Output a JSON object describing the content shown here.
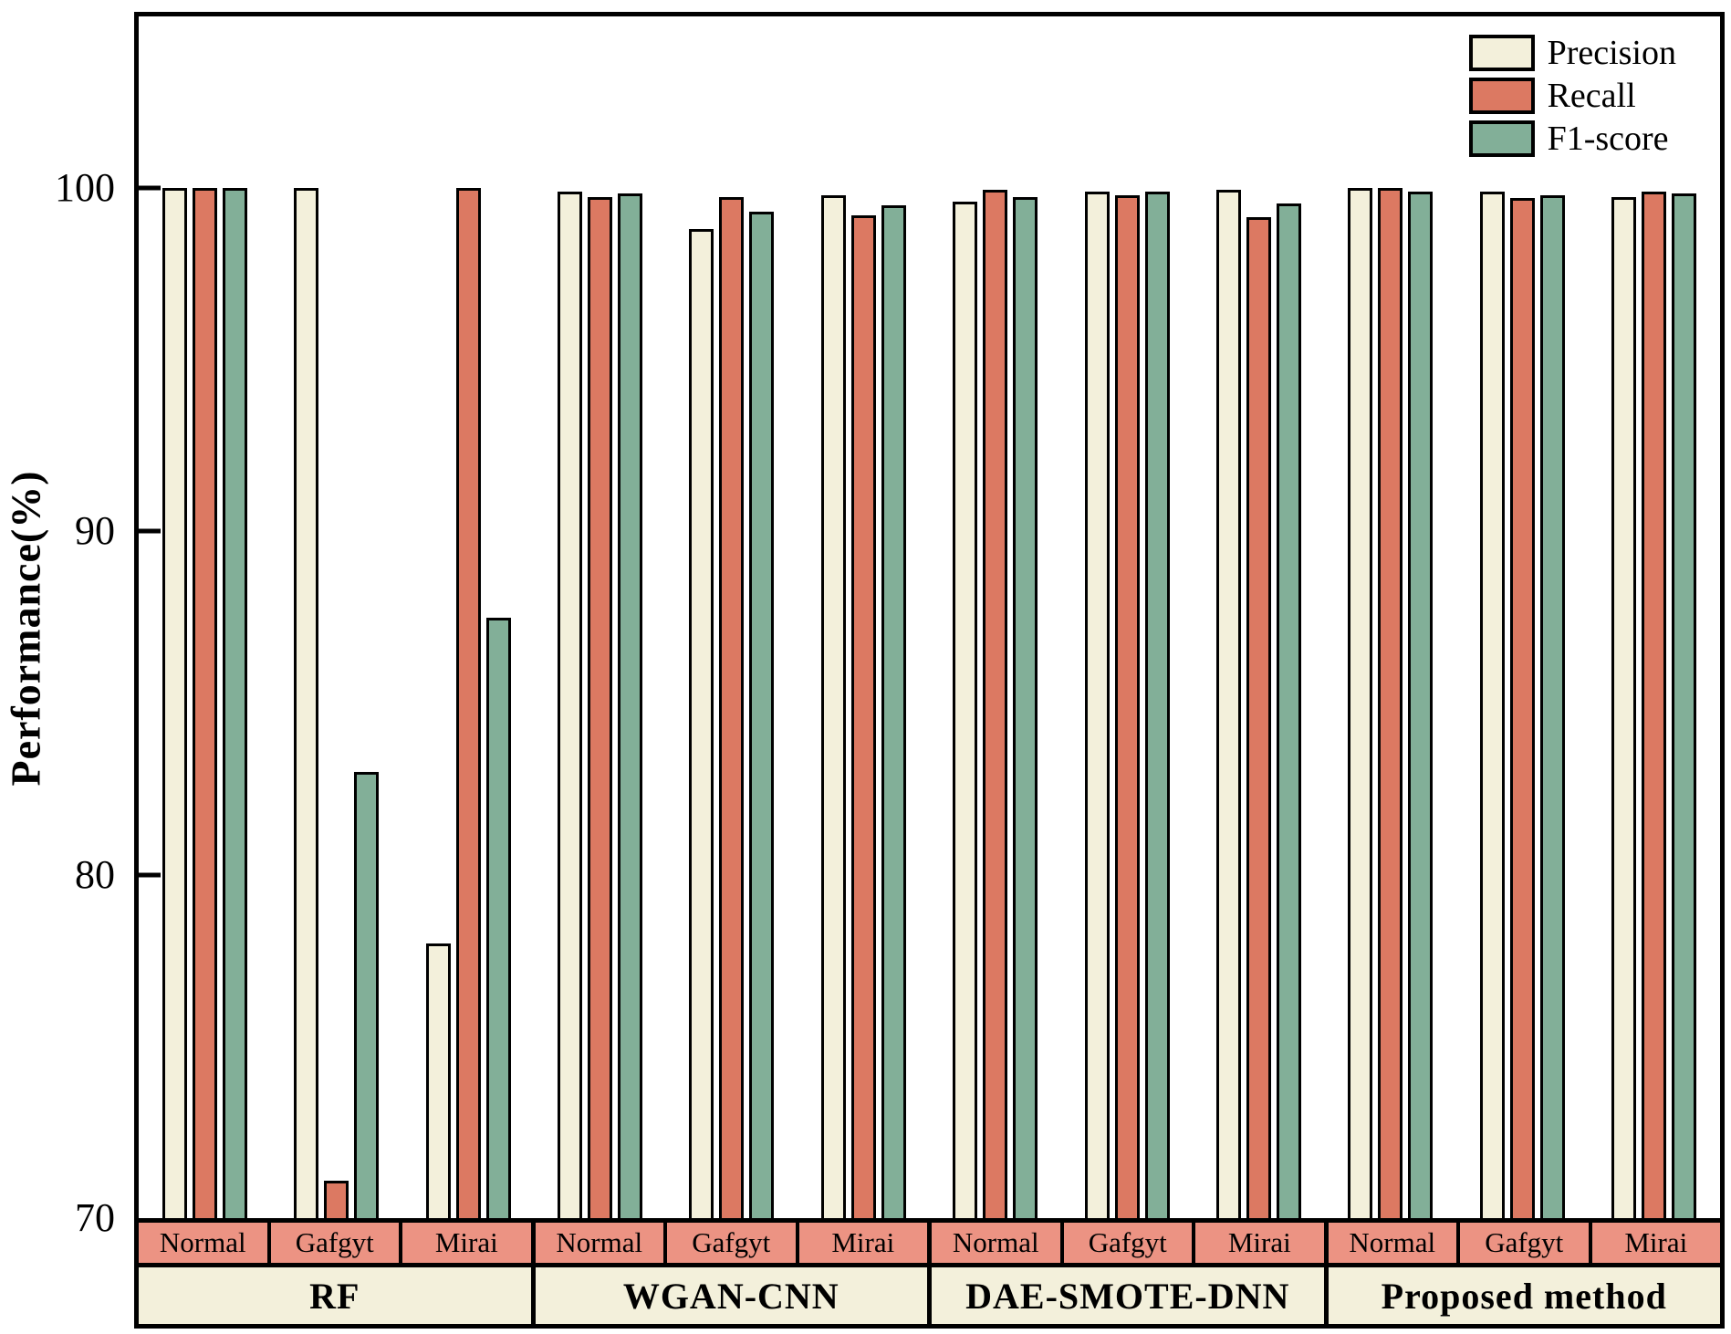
{
  "chart_data": {
    "type": "bar",
    "title": "",
    "xlabel": "",
    "ylabel": "Performance(%)",
    "ylim": [
      70,
      105
    ],
    "yticks": [
      70,
      80,
      90,
      100
    ],
    "grid": false,
    "legend_position": "top-right-inside",
    "series_names": [
      "Precision",
      "Recall",
      "F1-score"
    ],
    "series_colors": [
      "#F3F0DB",
      "#DC7962",
      "#82AF98"
    ],
    "groups": [
      {
        "label": "RF",
        "clusters": [
          {
            "label": "Normal",
            "values": [
              100,
              100,
              100
            ]
          },
          {
            "label": "Gafgyt",
            "values": [
              100,
              71.1,
              83.0
            ]
          },
          {
            "label": "Mirai",
            "values": [
              78.0,
              100,
              87.5
            ]
          }
        ]
      },
      {
        "label": "WGAN-CNN",
        "clusters": [
          {
            "label": "Normal",
            "values": [
              99.9,
              99.75,
              99.85
            ]
          },
          {
            "label": "Gafgyt",
            "values": [
              98.8,
              99.75,
              99.3
            ]
          },
          {
            "label": "Mirai",
            "values": [
              99.8,
              99.2,
              99.5
            ]
          }
        ]
      },
      {
        "label": "DAE-SMOTE-DNN",
        "clusters": [
          {
            "label": "Normal",
            "values": [
              99.6,
              99.95,
              99.75
            ]
          },
          {
            "label": "Gafgyt",
            "values": [
              99.9,
              99.8,
              99.9
            ]
          },
          {
            "label": "Mirai",
            "values": [
              99.95,
              99.15,
              99.55
            ]
          }
        ]
      },
      {
        "label": "Proposed method",
        "clusters": [
          {
            "label": "Normal",
            "values": [
              100,
              100,
              99.9
            ]
          },
          {
            "label": "Gafgyt",
            "values": [
              99.9,
              99.7,
              99.8
            ]
          },
          {
            "label": "Mirai",
            "values": [
              99.75,
              99.9,
              99.85
            ]
          }
        ]
      }
    ]
  },
  "colors": {
    "background": "#FFFFFF",
    "frame_border": "#000000",
    "category_strip": "#EC9383",
    "group_strip": "#F3F0DB",
    "bar_outline": "#000000"
  }
}
